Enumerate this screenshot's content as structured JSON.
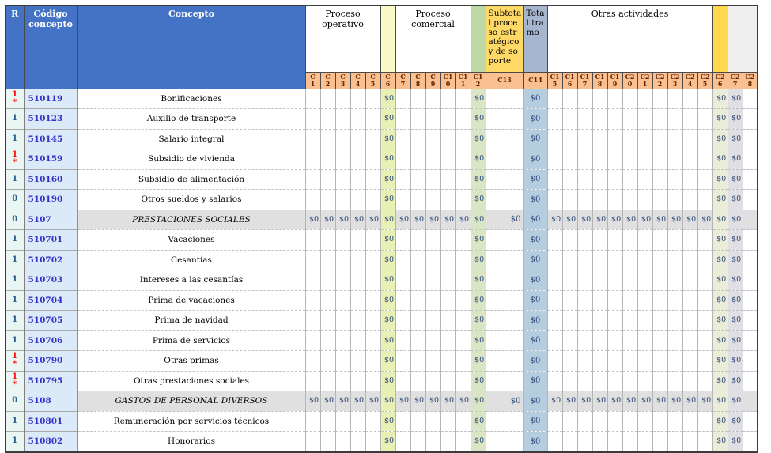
{
  "table": {
    "header": {
      "r": "R",
      "codigo": "Código concepto",
      "concepto": "Concepto",
      "proceso_operativo": "Proceso operativo",
      "proceso_comercial": "Proceso comercial",
      "subtotal_proceso": "Subtotal proceso estratégico y de soporte",
      "total_tramo": "Total tramo",
      "otras_actividades": "Otras actividades"
    },
    "column_labels": [
      "C1",
      "C2",
      "C3",
      "C4",
      "C5",
      "C6",
      "C7",
      "C8",
      "C9",
      "C10",
      "C11",
      "C12",
      "C13",
      "C14",
      "C15",
      "C16",
      "C17",
      "C18",
      "C19",
      "C20",
      "C21",
      "C22",
      "C23",
      "C24",
      "C25",
      "C26",
      "C27",
      "C28"
    ],
    "cell_value": "$0",
    "detail_value_columns": [
      "C6",
      "C12",
      "C14",
      "C26",
      "C27"
    ],
    "summary_value_columns": [
      "C1",
      "C2",
      "C3",
      "C4",
      "C5",
      "C6",
      "C7",
      "C8",
      "C9",
      "C10",
      "C11",
      "C12",
      "C13",
      "C14",
      "C15",
      "C16",
      "C17",
      "C18",
      "C19",
      "C20",
      "C21",
      "C22",
      "C23",
      "C24",
      "C25",
      "C26",
      "C27"
    ],
    "rows": [
      {
        "r": "1",
        "star": true,
        "r_style": "red",
        "code": "510119",
        "concept": "Bonificaciones",
        "type": "detail"
      },
      {
        "r": "1",
        "star": false,
        "r_style": "blue",
        "code": "510123",
        "concept": "Auxilio de transporte",
        "type": "detail"
      },
      {
        "r": "1",
        "star": false,
        "r_style": "blue",
        "code": "510145",
        "concept": "Salario integral",
        "type": "detail"
      },
      {
        "r": "1",
        "star": true,
        "r_style": "red",
        "code": "510159",
        "concept": "Subsidio de vivienda",
        "type": "detail"
      },
      {
        "r": "1",
        "star": false,
        "r_style": "blue",
        "code": "510160",
        "concept": "Subsidio de alimentación",
        "type": "detail"
      },
      {
        "r": "0",
        "star": false,
        "r_style": "blue",
        "code": "510190",
        "concept": "Otros sueldos y salarios",
        "type": "detail"
      },
      {
        "r": "0",
        "star": false,
        "r_style": "blue",
        "code": "5107",
        "concept": "PRESTACIONES SOCIALES",
        "type": "summary"
      },
      {
        "r": "1",
        "star": false,
        "r_style": "blue",
        "code": "510701",
        "concept": "Vacaciones",
        "type": "detail"
      },
      {
        "r": "1",
        "star": false,
        "r_style": "blue",
        "code": "510702",
        "concept": "Cesantías",
        "type": "detail"
      },
      {
        "r": "1",
        "star": false,
        "r_style": "blue",
        "code": "510703",
        "concept": "Intereses a las cesantías",
        "type": "detail"
      },
      {
        "r": "1",
        "star": false,
        "r_style": "blue",
        "code": "510704",
        "concept": "Prima de vacaciones",
        "type": "detail"
      },
      {
        "r": "1",
        "star": false,
        "r_style": "blue",
        "code": "510705",
        "concept": "Prima de navidad",
        "type": "detail"
      },
      {
        "r": "1",
        "star": false,
        "r_style": "blue",
        "code": "510706",
        "concept": "Prima de servicios",
        "type": "detail"
      },
      {
        "r": "1",
        "star": true,
        "r_style": "red",
        "code": "510790",
        "concept": "Otras primas",
        "type": "detail"
      },
      {
        "r": "1",
        "star": true,
        "r_style": "red",
        "code": "510795",
        "concept": "Otras prestaciones sociales",
        "type": "detail"
      },
      {
        "r": "0",
        "star": false,
        "r_style": "blue",
        "code": "5108",
        "concept": "GASTOS DE PERSONAL DIVERSOS",
        "type": "summary"
      },
      {
        "r": "1",
        "star": false,
        "r_style": "blue",
        "code": "510801",
        "concept": "Remuneración por servicios técnicos",
        "type": "detail"
      },
      {
        "r": "1",
        "star": false,
        "r_style": "blue",
        "code": "510802",
        "concept": "Honorarios",
        "type": "detail"
      }
    ]
  },
  "colors": {
    "header_blue": "#4472C4",
    "subheader_bg": "#FAC08F",
    "subheader_text": "#641E00",
    "c6_header": "#FAFAC8",
    "c12_header": "#BED8A5",
    "c13_header": "#FFD966",
    "c14_header": "#A6B6CF",
    "c26_header": "#FFD84E",
    "c27_header": "#EFEFEF",
    "c28_header": "#EFEFEF",
    "r_col_bg": "#EAF6F4",
    "code_col_bg": "#DCE9F7",
    "c6_body": "#E9F0B4",
    "c12_body": "#D9E5C4",
    "c14_body": "#B4CDDF",
    "c26_body": "#EBEDD8",
    "c27_body": "#DFDFE4",
    "summary_bg": "#E0E0E0",
    "value_text": "#2E4977",
    "code_text": "#3232C8",
    "r_text_blue": "#2E5F8A",
    "r_text_red": "#FF1414"
  }
}
